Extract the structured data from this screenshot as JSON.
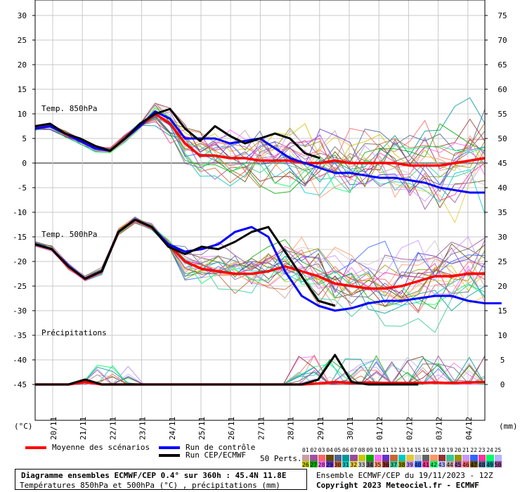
{
  "chart_data": {
    "type": "line",
    "left_unit": "(°C)",
    "right_unit": "(mm)",
    "left_axis": {
      "min": -50,
      "max": 30,
      "ticks": [
        30,
        25,
        20,
        15,
        10,
        5,
        0,
        -5,
        -10,
        -15,
        -20,
        -25,
        -30,
        -35,
        -40,
        -45
      ]
    },
    "right_axis": {
      "ticks_mm": [
        75,
        70,
        65,
        60,
        55,
        50,
        45,
        40,
        35,
        30,
        25,
        20,
        15,
        10,
        5,
        0
      ]
    },
    "x_labels": [
      "20/11",
      "21/11",
      "22/11",
      "23/11",
      "24/11",
      "25/11",
      "26/11",
      "27/11",
      "28/11",
      "29/11",
      "30/11",
      "01/12",
      "02/12",
      "03/12",
      "04/12"
    ],
    "panel_labels": {
      "t850": "Temp. 850hPa",
      "t500": "Temp. 500hPa",
      "precip": "Précipitations"
    },
    "grid": true,
    "series": [
      {
        "name": "Moyenne des scénarios",
        "color": "#ff0000",
        "group": "t850",
        "values": [
          7,
          7.5,
          6,
          4.5,
          3,
          2.5,
          5,
          7.5,
          10,
          8,
          4,
          1.5,
          1.5,
          1,
          1,
          0.5,
          0.5,
          0.5,
          0,
          0,
          0.5,
          0,
          0,
          0,
          0,
          -0.5,
          -0.5,
          -0.5,
          0,
          0.5,
          1
        ]
      },
      {
        "name": "Run de contrôle",
        "color": "#0000ff",
        "group": "t850",
        "values": [
          7,
          7.5,
          6,
          4.5,
          3,
          2.5,
          5,
          7.5,
          10.5,
          9,
          5,
          5,
          5,
          4,
          4.5,
          5,
          3,
          1,
          0,
          -1,
          -2,
          -2,
          -2.5,
          -3,
          -3,
          -3.5,
          -4,
          -5,
          -5.5,
          -6,
          -6
        ]
      },
      {
        "name": "Run CEP/ECMWF",
        "color": "#000000",
        "group": "t850",
        "values": [
          7.5,
          8,
          6,
          5,
          3.5,
          2.5,
          5,
          8,
          10,
          11,
          7,
          4.5,
          7.5,
          5.5,
          4,
          5,
          6,
          5,
          2,
          1
        ]
      },
      {
        "name": "Moyenne des scénarios",
        "color": "#ff0000",
        "group": "t500",
        "values": [
          -16.5,
          -17.5,
          -21,
          -23.5,
          -22,
          -14,
          -11.5,
          -13,
          -16.5,
          -20,
          -21.5,
          -22,
          -22.5,
          -22.5,
          -22,
          -21,
          -22,
          -23,
          -24.5,
          -25,
          -25.5,
          -25.5,
          -25,
          -24,
          -23,
          -23,
          -22.5,
          -22.5
        ]
      },
      {
        "name": "Run de contrôle",
        "color": "#0000ff",
        "group": "t500",
        "values": [
          -16.5,
          -17.5,
          -21,
          -23.5,
          -22,
          -14,
          -11.5,
          -13,
          -16.5,
          -18,
          -17.5,
          -16.5,
          -14,
          -13,
          -15,
          -22,
          -27,
          -29,
          -30,
          -29.5,
          -28.5,
          -28,
          -28,
          -27.5,
          -27,
          -27,
          -28,
          -28.5,
          -28.5
        ]
      },
      {
        "name": "Run CEP/ECMWF",
        "color": "#000000",
        "group": "t500",
        "values": [
          -16.5,
          -17.5,
          -21,
          -23.5,
          -22,
          -14,
          -11.5,
          -13,
          -17,
          -18.5,
          -17,
          -17.5,
          -16,
          -14,
          -13,
          -18,
          -23,
          -28,
          -29
        ]
      },
      {
        "name": "Moyenne des scénarios",
        "color": "#ff0000",
        "group": "precip",
        "values_mm": [
          0,
          0,
          0,
          0.5,
          0,
          0,
          0,
          0,
          0,
          0,
          0,
          0,
          0,
          0,
          0,
          0,
          0,
          0.2,
          0.5,
          0.3,
          0.4,
          0.3,
          0.3,
          0.3,
          0.4,
          0.3,
          0.4,
          0.5
        ]
      },
      {
        "name": "Run CEP/ECMWF",
        "color": "#000000",
        "group": "precip",
        "values_mm": [
          0,
          0,
          0,
          1,
          0,
          0,
          0,
          0,
          0,
          0,
          0,
          0,
          0,
          0,
          0,
          0,
          0,
          1,
          6,
          0.5,
          0,
          0,
          0,
          0
        ]
      }
    ]
  },
  "legend": {
    "mean_label": "Moyenne des scénarios",
    "control_label": "Run de contrôle",
    "ecmwf_label": "Run CEP/ECMWF",
    "perts_label": "50 Perts.",
    "perts_top": [
      "01",
      "02",
      "03",
      "04",
      "05",
      "06",
      "07",
      "08",
      "09",
      "10",
      "11",
      "12",
      "13",
      "14",
      "15",
      "16",
      "17",
      "18",
      "19",
      "20",
      "21",
      "22",
      "23",
      "24",
      "25"
    ],
    "perts_bottom": [
      "26",
      "27",
      "28",
      "29",
      "30",
      "31",
      "32",
      "33",
      "34",
      "35",
      "36",
      "37",
      "38",
      "39",
      "40",
      "41",
      "42",
      "43",
      "44",
      "45",
      "46",
      "47",
      "48",
      "49",
      "50"
    ],
    "perts_colors": [
      "#c8a0a0",
      "#a050a0",
      "#ff6464",
      "#644b00",
      "#4b6496",
      "#009696",
      "#964b96",
      "#c8c800",
      "#00aa00",
      "#ff64ff",
      "#6432c8",
      "#c86432",
      "#00c8c8",
      "#e6c83c",
      "#c8c8c8",
      "#646464",
      "#ff9664",
      "#963232",
      "#32c896",
      "#969600",
      "#c896ff",
      "#3264ff",
      "#ff3296",
      "#00ff64",
      "#b4b4ff"
    ]
  },
  "info": {
    "title": "Diagramme ensembles ECMWF/CEP 0.4° sur 360h : 45.4N 11.8E",
    "subtitle": "Températures 850hPa et 500hPa (°C) , précipitations (mm)",
    "run": "Ensemble ECMWF/CEP du 19/11/2023 - 12Z",
    "copyright": "Copyright 2023 Meteociel.fr - ECMWF"
  },
  "colors": {
    "mean": "#ff0000",
    "control": "#0000ff",
    "ecmwf": "#000000",
    "grid": "#c8c8c8"
  }
}
